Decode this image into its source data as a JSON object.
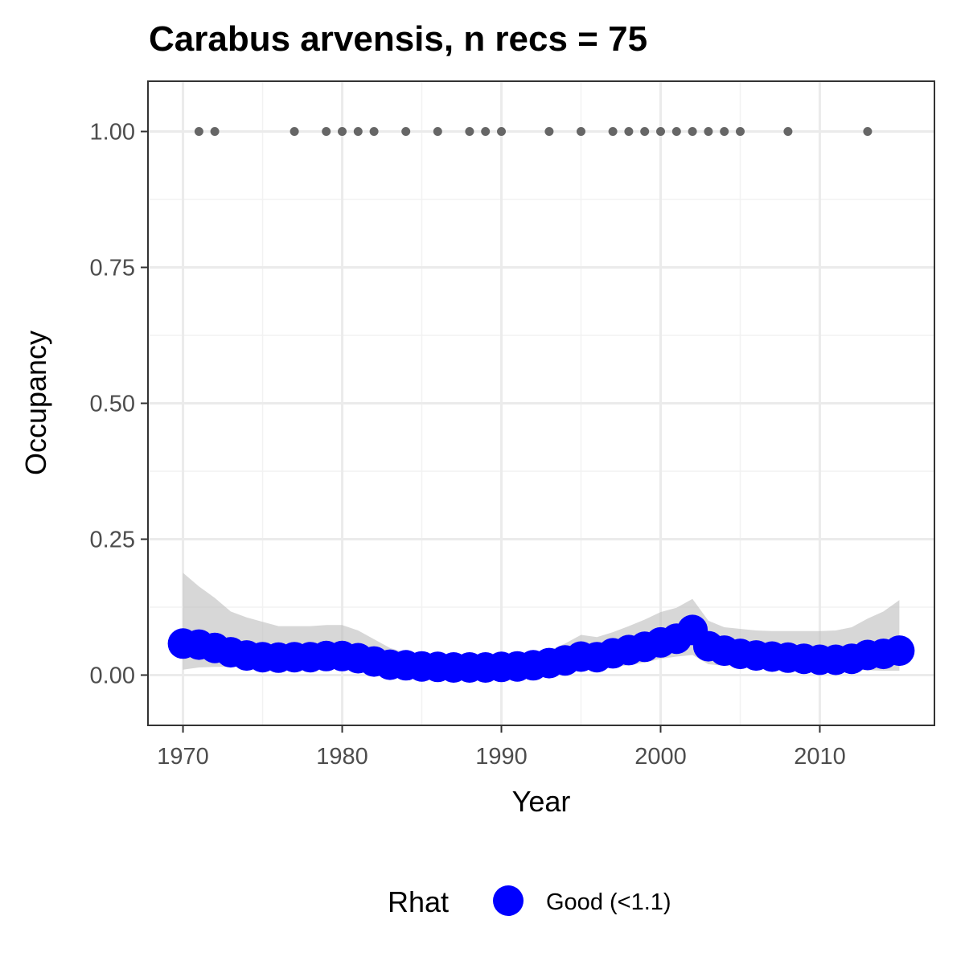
{
  "chart_data": {
    "type": "line",
    "title": "Carabus arvensis, n recs = 75",
    "xlabel": "Year",
    "ylabel": "Occupancy",
    "xlim": [
      1967.8,
      2017.2
    ],
    "ylim": [
      -0.0925,
      1.0925
    ],
    "x_ticks": [
      1970,
      1980,
      1990,
      2000,
      2010
    ],
    "x_tick_labels": [
      "1970",
      "1980",
      "1990",
      "2000",
      "2010"
    ],
    "y_ticks": [
      0,
      0.25,
      0.5,
      0.75,
      1
    ],
    "y_tick_labels": [
      "0.00",
      "0.25",
      "0.50",
      "0.75",
      "1.00"
    ],
    "grid": true,
    "legend": {
      "title": "Rhat",
      "position": "bottom",
      "entries": [
        {
          "label": "Good (<1.1)",
          "color": "#0000ff"
        }
      ]
    },
    "series": [
      {
        "kind": "ribbon",
        "color": "#bdbdbd",
        "x": [
          1970,
          1971,
          1972,
          1973,
          1974,
          1975,
          1976,
          1977,
          1978,
          1979,
          1980,
          1981,
          1982,
          1983,
          1984,
          1985,
          1986,
          1987,
          1988,
          1989,
          1990,
          1991,
          1992,
          1993,
          1994,
          1995,
          1996,
          1997,
          1998,
          1999,
          2000,
          2001,
          2002,
          2003,
          2004,
          2005,
          2006,
          2007,
          2008,
          2009,
          2010,
          2011,
          2012,
          2013,
          2014,
          2015
        ],
        "upper": [
          0.188,
          0.163,
          0.142,
          0.117,
          0.106,
          0.098,
          0.09,
          0.09,
          0.09,
          0.092,
          0.092,
          0.082,
          0.066,
          0.05,
          0.041,
          0.036,
          0.035,
          0.033,
          0.032,
          0.032,
          0.032,
          0.033,
          0.037,
          0.045,
          0.058,
          0.074,
          0.07,
          0.079,
          0.09,
          0.102,
          0.116,
          0.124,
          0.14,
          0.1,
          0.088,
          0.085,
          0.082,
          0.081,
          0.081,
          0.081,
          0.081,
          0.082,
          0.088,
          0.104,
          0.117,
          0.138
        ],
        "lower": [
          0.01,
          0.014,
          0.015,
          0.015,
          0.015,
          0.014,
          0.013,
          0.013,
          0.012,
          0.013,
          0.014,
          0.012,
          0.009,
          0.006,
          0.005,
          0.004,
          0.004,
          0.004,
          0.004,
          0.004,
          0.004,
          0.004,
          0.005,
          0.006,
          0.008,
          0.01,
          0.012,
          0.015,
          0.018,
          0.023,
          0.03,
          0.034,
          0.037,
          0.02,
          0.017,
          0.015,
          0.013,
          0.012,
          0.011,
          0.01,
          0.009,
          0.009,
          0.009,
          0.009,
          0.008,
          0.008
        ]
      },
      {
        "kind": "points",
        "name": "Good (<1.1)",
        "color": "#0000ff",
        "x": [
          1970,
          1971,
          1972,
          1973,
          1974,
          1975,
          1976,
          1977,
          1978,
          1979,
          1980,
          1981,
          1982,
          1983,
          1984,
          1985,
          1986,
          1987,
          1988,
          1989,
          1990,
          1991,
          1992,
          1993,
          1994,
          1995,
          1996,
          1997,
          1998,
          1999,
          2000,
          2001,
          2002,
          2003,
          2004,
          2005,
          2006,
          2007,
          2008,
          2009,
          2010,
          2011,
          2012,
          2013,
          2014,
          2015
        ],
        "y": [
          0.058,
          0.056,
          0.05,
          0.042,
          0.036,
          0.033,
          0.032,
          0.033,
          0.033,
          0.035,
          0.035,
          0.031,
          0.025,
          0.019,
          0.018,
          0.016,
          0.015,
          0.014,
          0.014,
          0.014,
          0.015,
          0.016,
          0.018,
          0.022,
          0.027,
          0.034,
          0.033,
          0.04,
          0.046,
          0.052,
          0.06,
          0.067,
          0.083,
          0.053,
          0.045,
          0.039,
          0.036,
          0.034,
          0.032,
          0.03,
          0.028,
          0.028,
          0.03,
          0.037,
          0.039,
          0.045
        ]
      },
      {
        "kind": "record_points",
        "color": "#666666",
        "x": [
          1971,
          1972,
          1977,
          1979,
          1980,
          1981,
          1982,
          1984,
          1986,
          1988,
          1989,
          1990,
          1993,
          1995,
          1997,
          1998,
          1999,
          2000,
          2001,
          2002,
          2003,
          2004,
          2005,
          2008,
          2013
        ],
        "y": [
          1,
          1,
          1,
          1,
          1,
          1,
          1,
          1,
          1,
          1,
          1,
          1,
          1,
          1,
          1,
          1,
          1,
          1,
          1,
          1,
          1,
          1,
          1,
          1,
          1
        ]
      }
    ]
  }
}
